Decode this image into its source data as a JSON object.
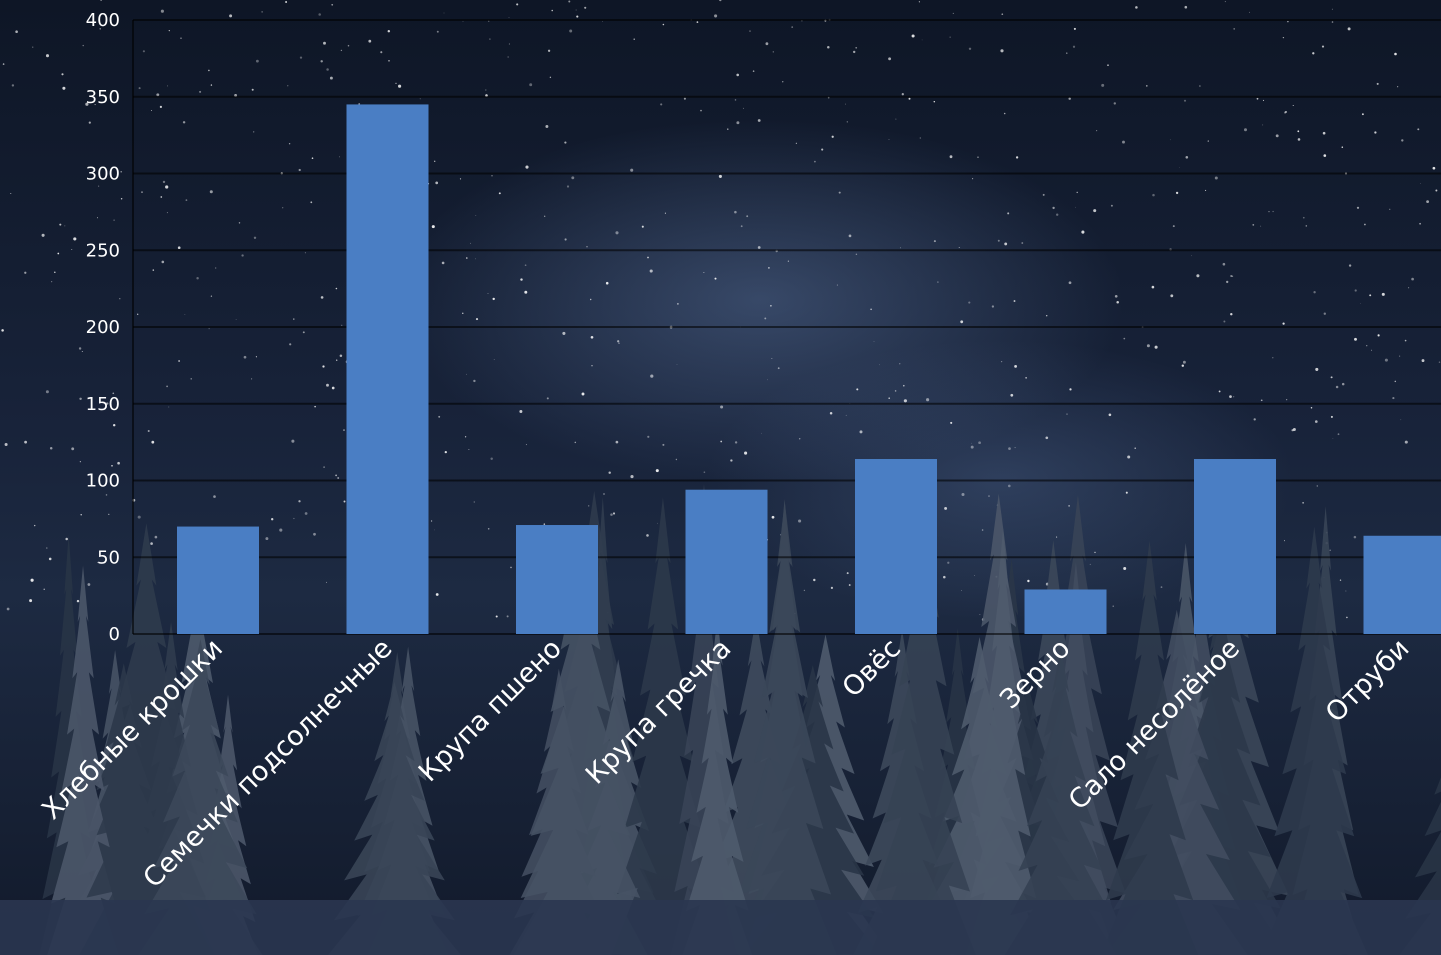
{
  "chart_data": {
    "type": "bar",
    "categories": [
      "Хлебные крошки",
      "Семечки подсолнечные",
      "Крупа пшено",
      "Крупа гречка",
      "Овёс",
      "Зерно",
      "Сало несолёное",
      "Отруби"
    ],
    "values": [
      70,
      345,
      71,
      94,
      114,
      29,
      114,
      64
    ],
    "y_ticks": [
      "0",
      "50",
      "100",
      "150",
      "200",
      "250",
      "300",
      "350",
      "400"
    ],
    "ylim": [
      0,
      400
    ],
    "grid": true,
    "legend": "none",
    "title": "",
    "xlabel": "",
    "ylabel": "",
    "colors": {
      "bar": "#4a7ec4",
      "grid": "#000000",
      "tick_text": "#ffffff",
      "category_text": "#ffffff"
    }
  }
}
